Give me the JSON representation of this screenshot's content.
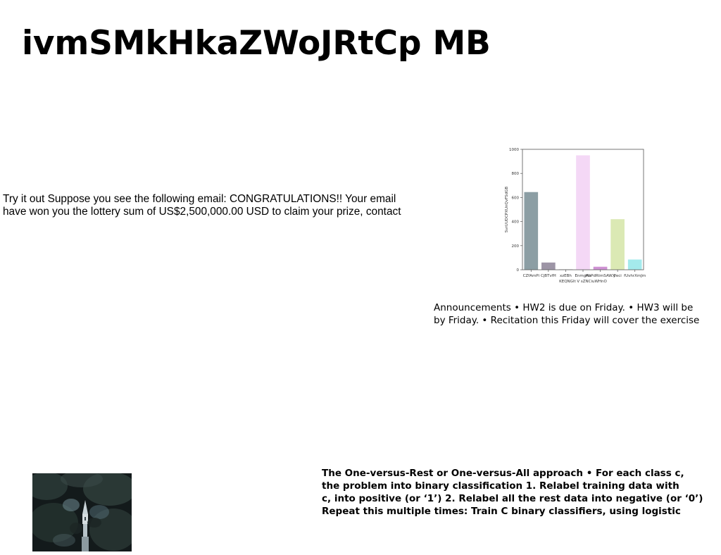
{
  "slide": {
    "title": "ivmSMkHkaZWoJRtCp MB",
    "left_text_lines": [
      "Try it out Suppose you see the following email: CONGRATULATIONS!! Your email",
      "have won you the lottery sum of US$2,500,000.00 USD to claim your prize, contact"
    ],
    "announcement_lines": [
      "Announcements • HW2 is due on Friday. • HW3 will be",
      "by Friday. • Recitation this Friday will cover the exercise"
    ],
    "ovr_text_lines": [
      "The One-versus-Rest or One-versus-All approach • For each class c,",
      "the problem into binary classification 1. Relabel training data with",
      "c, into positive (or ‘1’) 2. Relabel all the rest data into negative (or ‘0’)",
      "Repeat this multiple times: Train C binary classifiers, using logistic"
    ]
  },
  "chart_data": {
    "type": "bar",
    "categories": [
      "CZfAmPi",
      "CjBTvfH",
      "xzEBh",
      "EnmgAb",
      "HoPdRtmSAWX",
      "jfeci",
      "fUvhrXmJm"
    ],
    "values": [
      645,
      60,
      5,
      950,
      25,
      420,
      85
    ],
    "colors": [
      "#8c9ea4",
      "#9d95a6",
      "#d9d9d9",
      "#f4d8f6",
      "#cf92d4",
      "#dbe9b4",
      "#a4eaec"
    ],
    "xlabel": "KEQNGlt V sZNCiuWHnO",
    "ylabel": "SvrUUDCPXUnQvFSdGB",
    "ylim": [
      0,
      1000
    ],
    "yticks": [
      0,
      200,
      400,
      600,
      800,
      1000
    ]
  }
}
